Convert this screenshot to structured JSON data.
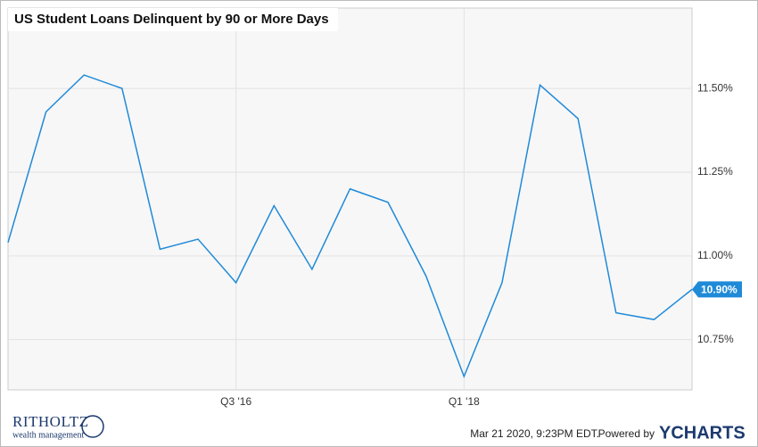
{
  "chart_data": {
    "type": "line",
    "title": "US Student Loans Delinquent by 90 or More Days",
    "categories": [
      null,
      null,
      null,
      null,
      null,
      null,
      "Q3 '16",
      null,
      null,
      null,
      null,
      null,
      "Q1 '18",
      null,
      null,
      null,
      null,
      null,
      null
    ],
    "series": [
      {
        "name": "US Student Loans Delinquent by 90 or More Days",
        "color": "#1f8ad8",
        "values": [
          11.04,
          11.43,
          11.54,
          11.5,
          11.02,
          11.05,
          10.92,
          11.15,
          10.96,
          11.2,
          11.16,
          10.94,
          10.64,
          10.92,
          11.51,
          11.41,
          10.83,
          10.81,
          10.9
        ],
        "value_labels": [
          null,
          null,
          null,
          null,
          null,
          null,
          null,
          null,
          null,
          null,
          null,
          null,
          null,
          null,
          null,
          null,
          null,
          null,
          "10.90%"
        ]
      }
    ],
    "ylim": [
      10.6,
      11.74
    ],
    "yticks": [
      {
        "value": 10.75,
        "label": "10.75%"
      },
      {
        "value": 11.0,
        "label": "11.00%"
      },
      {
        "value": 11.25,
        "label": "11.25%"
      },
      {
        "value": 11.5,
        "label": "11.50%"
      }
    ],
    "grid": true
  },
  "footer": {
    "timestamp": "Mar 21 2020, 9:23PM EDT.",
    "powered_by": "Powered by",
    "brand": "YCHARTS",
    "logo_name": "RITHOLTZ",
    "logo_tagline": "wealth management"
  }
}
